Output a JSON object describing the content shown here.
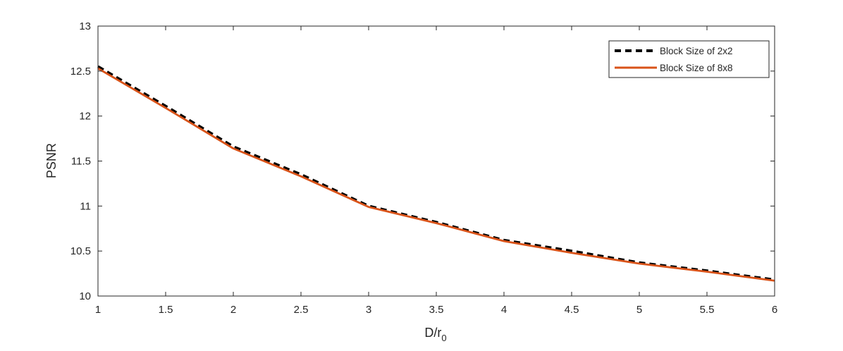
{
  "chart_data": {
    "type": "line",
    "title": "",
    "xlabel": "D/r",
    "xlabel_subscript": "0",
    "ylabel": "PSNR",
    "xlim": [
      1,
      6
    ],
    "ylim": [
      10,
      13
    ],
    "x_ticks": [
      "1",
      "1.5",
      "2",
      "2.5",
      "3",
      "3.5",
      "4",
      "4.5",
      "5",
      "5.5",
      "6"
    ],
    "y_ticks": [
      "10",
      "10.5",
      "11",
      "11.5",
      "12",
      "12.5",
      "13"
    ],
    "grid": false,
    "legend_position": "top-right",
    "x": [
      1,
      1.5,
      2,
      2.5,
      3,
      3.5,
      4,
      4.5,
      5,
      5.5,
      6
    ],
    "series": [
      {
        "name": "Block Size of 2x2",
        "color": "#000000",
        "style": "dashed",
        "values": [
          12.55,
          12.11,
          11.66,
          11.35,
          11.0,
          10.82,
          10.62,
          10.5,
          10.37,
          10.28,
          10.18
        ]
      },
      {
        "name": "Block Size of 8x8",
        "color": "#d95319",
        "style": "solid",
        "values": [
          12.53,
          12.09,
          11.64,
          11.33,
          10.99,
          10.81,
          10.61,
          10.48,
          10.36,
          10.27,
          10.17
        ]
      }
    ]
  }
}
